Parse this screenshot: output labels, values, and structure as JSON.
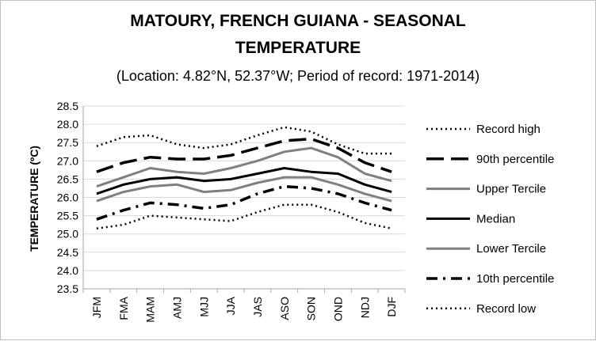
{
  "chart_data": {
    "type": "line",
    "title_line1": "MATOURY, FRENCH GUIANA - SEASONAL",
    "title_line2": "TEMPERATURE",
    "subtitle": "(Location: 4.82°N, 52.37°W; Period of record: 1971-2014)",
    "ylabel": "TEMPERATURE (ºC)",
    "xlabel": "",
    "ylim": [
      23.5,
      28.5
    ],
    "yticks": [
      "28.5",
      "28.0",
      "27.5",
      "27.0",
      "26.5",
      "26.0",
      "25.5",
      "25.0",
      "24.5",
      "24.0",
      "23.5"
    ],
    "categories": [
      "JFM",
      "FMA",
      "MAM",
      "AMJ",
      "MJJ",
      "JJA",
      "JAS",
      "ASO",
      "SON",
      "OND",
      "NDJ",
      "DJF"
    ],
    "grid": true,
    "legend_position": "right",
    "series": [
      {
        "name": "Record high",
        "color": "#000000",
        "dash": "dotted",
        "values": [
          27.4,
          27.65,
          27.7,
          27.45,
          27.35,
          27.45,
          27.7,
          27.92,
          27.8,
          27.45,
          27.2,
          27.2
        ]
      },
      {
        "name": "90th percentile",
        "color": "#000000",
        "dash": "long-dash",
        "values": [
          26.7,
          26.95,
          27.1,
          27.05,
          27.05,
          27.15,
          27.35,
          27.55,
          27.6,
          27.35,
          26.95,
          26.7
        ]
      },
      {
        "name": "Upper Tercile",
        "color": "#808080",
        "dash": "solid",
        "values": [
          26.3,
          26.55,
          26.8,
          26.7,
          26.65,
          26.8,
          27.0,
          27.25,
          27.35,
          27.1,
          26.65,
          26.45
        ]
      },
      {
        "name": "Median",
        "color": "#000000",
        "dash": "solid",
        "values": [
          26.1,
          26.35,
          26.5,
          26.55,
          26.45,
          26.5,
          26.65,
          26.8,
          26.7,
          26.65,
          26.35,
          26.15
        ]
      },
      {
        "name": "Lower Tercile",
        "color": "#808080",
        "dash": "solid",
        "values": [
          25.9,
          26.15,
          26.3,
          26.35,
          26.15,
          26.2,
          26.4,
          26.55,
          26.55,
          26.35,
          26.1,
          25.9
        ]
      },
      {
        "name": "10th percentile",
        "color": "#000000",
        "dash": "dash-dot",
        "values": [
          25.4,
          25.65,
          25.85,
          25.8,
          25.7,
          25.8,
          26.1,
          26.3,
          26.25,
          26.1,
          25.85,
          25.65
        ]
      },
      {
        "name": "Record low",
        "color": "#000000",
        "dash": "dotted",
        "values": [
          25.15,
          25.25,
          25.5,
          25.45,
          25.4,
          25.35,
          25.6,
          25.8,
          25.8,
          25.6,
          25.3,
          25.15
        ]
      }
    ]
  }
}
